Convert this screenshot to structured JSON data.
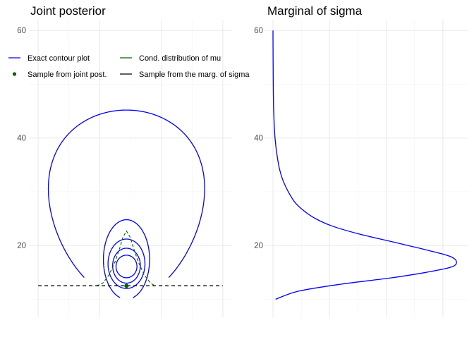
{
  "chart_data": [
    {
      "type": "line",
      "title": "Joint posterior",
      "xlabel": "",
      "ylabel": "",
      "grid": true,
      "ylim": [
        9,
        62
      ],
      "yticks": [
        20,
        40,
        60
      ],
      "xticks_minor": [
        -20,
        -10,
        0,
        10,
        20,
        30,
        40
      ],
      "xlim": [
        -23,
        43
      ],
      "legend": {
        "position": "top",
        "entries": [
          {
            "label": "Exact contour plot",
            "kind": "line",
            "color": "#0000ff"
          },
          {
            "label": "Cond. distribution of mu",
            "kind": "line",
            "color": "#006400"
          },
          {
            "label": "Sample from joint post.",
            "kind": "point",
            "color": "#006400"
          },
          {
            "label": "Sample from the marg. of sigma",
            "kind": "line",
            "color": "#000000"
          }
        ]
      },
      "contours": [
        {
          "name": "level-1",
          "center_x": 8.7,
          "axis_x": 25.0,
          "top": 45.2,
          "bottom": 10.0,
          "open_bottom": true,
          "gap": 0.22
        },
        {
          "name": "level-2",
          "center_x": 8.7,
          "axis_x": 7.5,
          "top": 24.8,
          "bottom": 10.0,
          "open_bottom": true,
          "gap": 0.09
        },
        {
          "name": "level-3",
          "center_x": 8.7,
          "axis_x": 6.0,
          "top": 21.2,
          "bottom": 12.0,
          "open_bottom": false
        },
        {
          "name": "level-4",
          "center_x": 8.7,
          "axis_x": 4.5,
          "top": 19.5,
          "bottom": 13.0,
          "open_bottom": false
        },
        {
          "name": "level-5",
          "center_x": 8.7,
          "axis_x": 3.4,
          "top": 18.2,
          "bottom": 14.0,
          "open_bottom": false
        }
      ],
      "conditional_mu": {
        "sigma": 12.5,
        "mean": 8.7,
        "x": [
          -1,
          1,
          3,
          5,
          6.5,
          7.5,
          8.7,
          9.9,
          11,
          12.5,
          14.5,
          16.5,
          18
        ],
        "y": [
          12.5,
          13.0,
          14.5,
          17.0,
          19.5,
          21.5,
          22.7,
          21.5,
          19.5,
          17.0,
          14.5,
          13.0,
          12.5
        ]
      },
      "sample_sigma_line": {
        "y": 12.5,
        "x_range": [
          -20,
          40
        ]
      },
      "sample_point": {
        "x": 8.7,
        "y": 12.5
      }
    },
    {
      "type": "line",
      "title": "Marginal of sigma",
      "xlabel": "",
      "ylabel": "",
      "grid": true,
      "ylim": [
        9,
        62
      ],
      "yticks": [
        20,
        40,
        60
      ],
      "xlim": [
        -0.005,
        0.115
      ],
      "series": [
        {
          "color": "#0000ff",
          "x": [
            0.0015,
            0.015,
            0.04,
            0.07,
            0.09,
            0.105,
            0.108,
            0.104,
            0.09,
            0.07,
            0.05,
            0.035,
            0.025,
            0.018,
            0.013,
            0.009,
            0.006,
            0.004,
            0.0025,
            0.0012,
            0.0004,
            0.0001,
            0.0
          ],
          "y": [
            10.0,
            11.5,
            12.8,
            14.0,
            15.0,
            16.0,
            17.0,
            18.0,
            19.2,
            20.7,
            22.2,
            23.6,
            25.0,
            26.5,
            28.0,
            30.0,
            32.0,
            34.0,
            36.5,
            40.0,
            45.0,
            52.0,
            60.0
          ]
        }
      ]
    }
  ]
}
